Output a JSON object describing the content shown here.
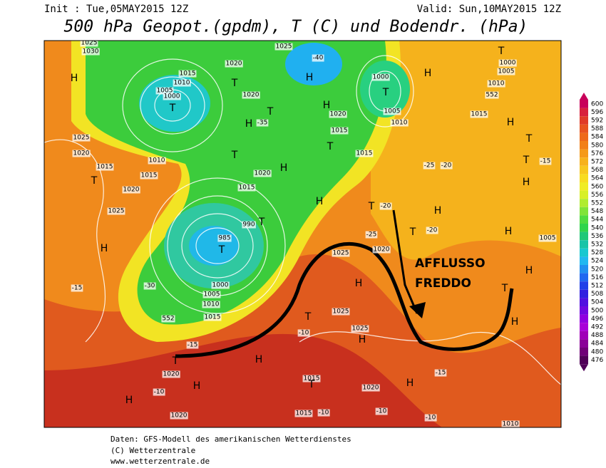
{
  "header": {
    "init": "Init : Tue,05MAY2015 12Z",
    "valid": "Valid: Sun,10MAY2015 12Z",
    "title": "500 hPa Geopot.(gpdm), T (C) und Bodendr. (hPa)"
  },
  "map_labels": [
    "1030",
    "H",
    "1015",
    "1010",
    "1005",
    "1000",
    "T",
    "1020",
    "1025",
    "-40",
    "H",
    "T",
    "1020",
    "T",
    "H",
    "-35",
    "1020",
    "H",
    "1015",
    "T",
    "1015",
    "1000",
    "T",
    "1005",
    "1010",
    "H",
    "T",
    "1000",
    "1005",
    "1010",
    "552",
    "1015",
    "H",
    "T",
    "T",
    "H",
    "-15",
    "1025",
    "1020",
    "1015",
    "T",
    "1020",
    "1025",
    "H",
    "1010",
    "1015",
    "T",
    "1020",
    "H",
    "1015",
    "990",
    "985",
    "T",
    "T",
    "H",
    "1000",
    "1005",
    "1010",
    "1015",
    "552",
    "-30",
    "-15",
    "-15",
    "T",
    "1020",
    "H",
    "H",
    "H",
    "-10",
    "1020",
    "1025",
    "H",
    "1020",
    "T",
    "1025",
    "1025",
    "H",
    "-10",
    "1015",
    "T",
    "1020",
    "H",
    "1015",
    "-10",
    "-10",
    "-10",
    "-15",
    "1010",
    "T",
    "T",
    "H",
    "H",
    "H",
    "H",
    "1005",
    "T",
    "-20",
    "-25",
    "-20",
    "-25",
    "-20",
    "1025"
  ],
  "annotation": [
    "AFFLUSSO",
    "FREDDO"
  ],
  "colorbar": {
    "values": [
      600,
      596,
      592,
      588,
      584,
      580,
      576,
      572,
      568,
      564,
      560,
      556,
      552,
      548,
      544,
      540,
      536,
      532,
      528,
      524,
      520,
      516,
      512,
      508,
      504,
      500,
      496,
      492,
      488,
      484,
      480,
      476
    ],
    "colors": [
      "#c8005a",
      "#d8203c",
      "#e03a28",
      "#e85420",
      "#ee6a1a",
      "#f28018",
      "#f59a1a",
      "#f7b21c",
      "#f8c81e",
      "#f8dc20",
      "#f0ec24",
      "#d8f028",
      "#b0ec30",
      "#80e438",
      "#50dc40",
      "#30d44c",
      "#20c878",
      "#18c4a8",
      "#18c8d0",
      "#20b8f0",
      "#2090f0",
      "#2068f0",
      "#2040e8",
      "#3020e0",
      "#5010e0",
      "#7008e0",
      "#9000e0",
      "#a800d8",
      "#a000b8",
      "#8a0098",
      "#700078",
      "#500058"
    ]
  },
  "footer": [
    "Daten: GFS-Modell des amerikanischen Wetterdienstes",
    "(C) Wetterzentrale",
    "www.wetterzentrale.de"
  ]
}
